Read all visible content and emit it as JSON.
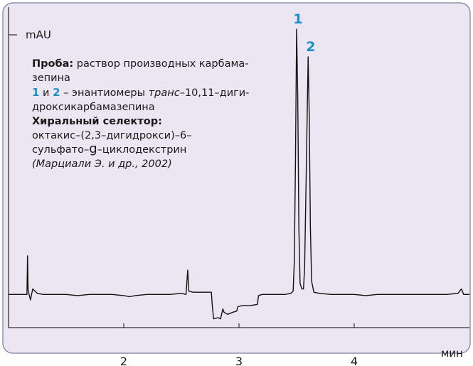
{
  "chart_data": {
    "type": "line",
    "title": "",
    "xlabel": "мин",
    "ylabel": "mAU",
    "xlim": [
      1.0,
      5.0
    ],
    "ylim": [
      -30,
      260
    ],
    "x_ticks": [
      2,
      3,
      4
    ],
    "x_tick_labels": [
      "2",
      "3",
      "4"
    ],
    "grid": false,
    "colors": {
      "plot_background": "#ece6f3",
      "trace": "#111111",
      "axis": "#333333",
      "frame": "#7a7a9a",
      "peak_label": "#1b8fc9"
    },
    "peak_labels": [
      {
        "text": "1",
        "x": 3.5
      },
      {
        "text": "2",
        "x": 3.61
      }
    ],
    "series": [
      {
        "points": [
          [
            1.0,
            0
          ],
          [
            1.1,
            0
          ],
          [
            1.16,
            0
          ],
          [
            1.165,
            35
          ],
          [
            1.17,
            4
          ],
          [
            1.19,
            -5
          ],
          [
            1.21,
            5
          ],
          [
            1.25,
            1
          ],
          [
            1.3,
            0
          ],
          [
            1.4,
            0
          ],
          [
            1.45,
            0
          ],
          [
            1.5,
            0
          ],
          [
            1.6,
            -1
          ],
          [
            1.7,
            0
          ],
          [
            1.8,
            0
          ],
          [
            1.9,
            0
          ],
          [
            2.0,
            -1
          ],
          [
            2.05,
            -2
          ],
          [
            2.1,
            -1
          ],
          [
            2.2,
            0
          ],
          [
            2.3,
            0
          ],
          [
            2.4,
            0
          ],
          [
            2.5,
            1
          ],
          [
            2.54,
            0
          ],
          [
            2.555,
            22
          ],
          [
            2.565,
            3
          ],
          [
            2.6,
            2
          ],
          [
            2.7,
            2
          ],
          [
            2.76,
            2
          ],
          [
            2.77,
            -12
          ],
          [
            2.78,
            -22
          ],
          [
            2.82,
            -21
          ],
          [
            2.84,
            -22
          ],
          [
            2.86,
            -13
          ],
          [
            2.87,
            -16
          ],
          [
            2.9,
            -18
          ],
          [
            2.95,
            -16
          ],
          [
            2.98,
            -15
          ],
          [
            2.99,
            -11
          ],
          [
            3.03,
            -10
          ],
          [
            3.1,
            -10
          ],
          [
            3.16,
            -9
          ],
          [
            3.17,
            -1
          ],
          [
            3.2,
            0
          ],
          [
            3.3,
            0
          ],
          [
            3.4,
            0
          ],
          [
            3.45,
            1
          ],
          [
            3.47,
            3
          ],
          [
            3.48,
            30
          ],
          [
            3.49,
            120
          ],
          [
            3.5,
            240
          ],
          [
            3.51,
            180
          ],
          [
            3.52,
            60
          ],
          [
            3.53,
            10
          ],
          [
            3.545,
            5
          ],
          [
            3.56,
            5
          ],
          [
            3.57,
            25
          ],
          [
            3.585,
            120
          ],
          [
            3.6,
            215
          ],
          [
            3.61,
            160
          ],
          [
            3.62,
            60
          ],
          [
            3.63,
            12
          ],
          [
            3.65,
            2
          ],
          [
            3.7,
            1
          ],
          [
            3.8,
            0
          ],
          [
            3.9,
            0
          ],
          [
            4.0,
            0
          ],
          [
            4.1,
            -1
          ],
          [
            4.2,
            0
          ],
          [
            4.3,
            0
          ],
          [
            4.4,
            0
          ],
          [
            4.5,
            0
          ],
          [
            4.6,
            0
          ],
          [
            4.7,
            0
          ],
          [
            4.8,
            0
          ],
          [
            4.9,
            1
          ],
          [
            4.93,
            5
          ],
          [
            4.95,
            0
          ],
          [
            5.0,
            0
          ]
        ]
      }
    ]
  },
  "annotation": {
    "line1_bold": "Проба:",
    "line1_rest": " раствор производных карбама-",
    "line2": "зепина",
    "line3_num1": "1",
    "line3_and": " и ",
    "line3_num2": "2",
    "line3_pre": " – энантиомеры ",
    "line3_ital": "транс",
    "line3_post": "–10,11–диги-",
    "line4": "дроксикарбамазепина",
    "line5_bold": "Хиральный селектор:",
    "line6": "октакис–(2,3–дигидрокси)–6–",
    "line7_pre": "сульфато–",
    "line7_greek": "g",
    "line7_post": "–циклодекстрин",
    "line8": "(Марциали Э. и др., 2002)"
  }
}
